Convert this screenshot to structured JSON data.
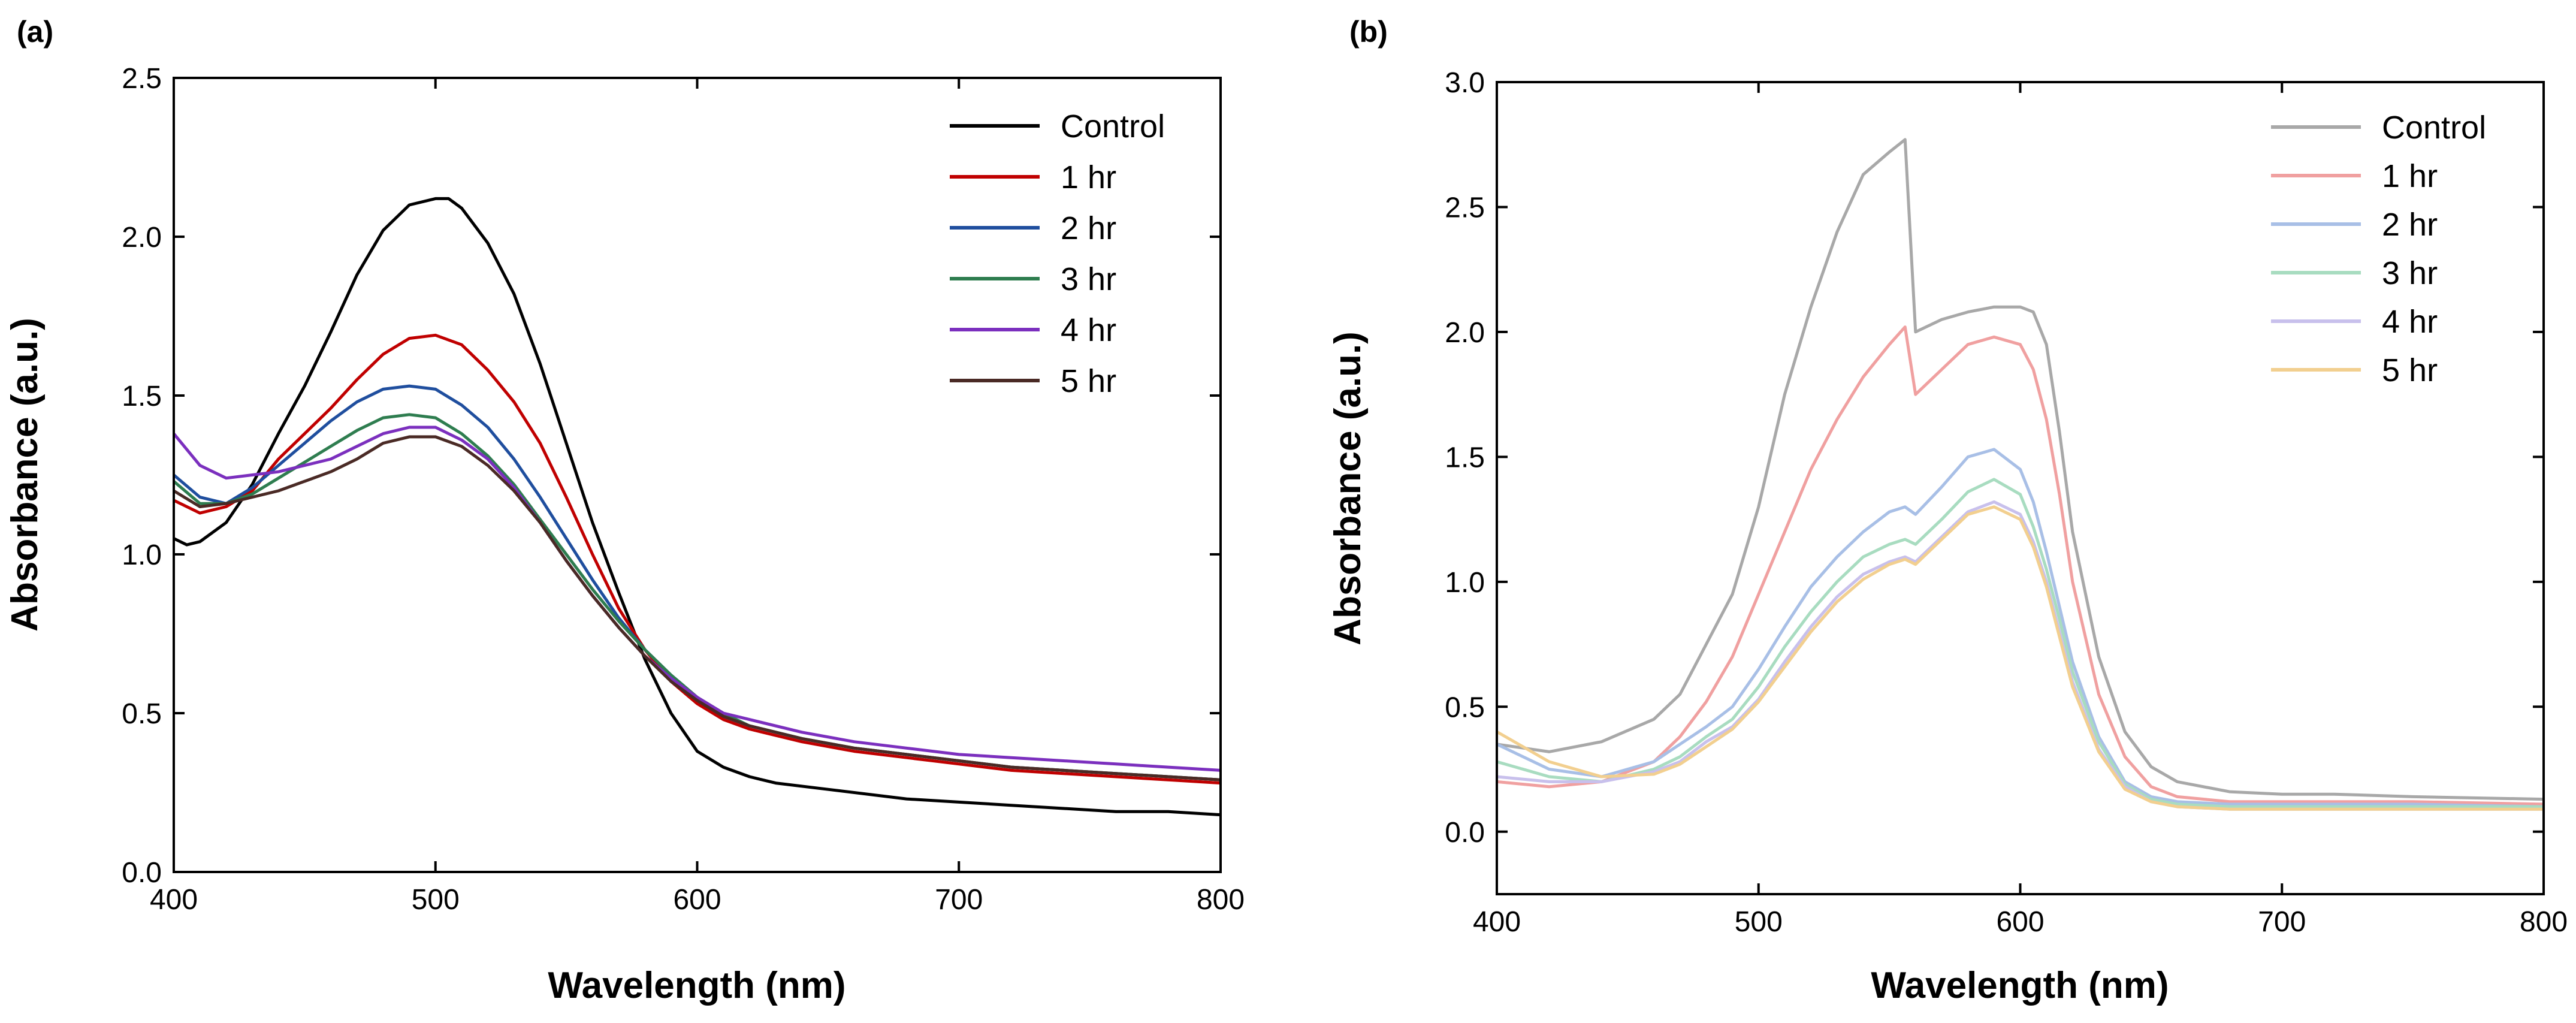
{
  "chart_data": [
    {
      "type": "line",
      "panel_label": "(a)",
      "xlabel": "Wavelength (nm)",
      "ylabel": "Absorbance (a.u.)",
      "xlim": [
        400,
        800
      ],
      "ylim": [
        0.0,
        2.5
      ],
      "xticks": [
        400,
        500,
        600,
        700,
        800
      ],
      "yticks": [
        0.0,
        0.5,
        1.0,
        1.5,
        2.0,
        2.5
      ],
      "legend_position": "top-right",
      "series": [
        {
          "name": "Control",
          "color": "#000000",
          "x": [
            400,
            405,
            410,
            420,
            430,
            440,
            450,
            460,
            470,
            480,
            490,
            500,
            505,
            510,
            520,
            530,
            540,
            550,
            560,
            570,
            580,
            590,
            600,
            610,
            620,
            630,
            650,
            680,
            700,
            720,
            740,
            760,
            780,
            800
          ],
          "values": [
            1.05,
            1.03,
            1.04,
            1.1,
            1.22,
            1.38,
            1.53,
            1.7,
            1.88,
            2.02,
            2.1,
            2.12,
            2.12,
            2.09,
            1.98,
            1.82,
            1.6,
            1.35,
            1.1,
            0.88,
            0.67,
            0.5,
            0.38,
            0.33,
            0.3,
            0.28,
            0.26,
            0.23,
            0.22,
            0.21,
            0.2,
            0.19,
            0.19,
            0.18
          ]
        },
        {
          "name": "1 hr",
          "color": "#c00000",
          "x": [
            400,
            410,
            420,
            430,
            440,
            450,
            460,
            470,
            480,
            490,
            500,
            510,
            520,
            530,
            540,
            550,
            560,
            570,
            580,
            590,
            600,
            610,
            620,
            640,
            660,
            680,
            700,
            720,
            740,
            760,
            780,
            800
          ],
          "values": [
            1.17,
            1.13,
            1.15,
            1.2,
            1.3,
            1.38,
            1.46,
            1.55,
            1.63,
            1.68,
            1.69,
            1.66,
            1.58,
            1.48,
            1.35,
            1.18,
            1.0,
            0.83,
            0.7,
            0.6,
            0.53,
            0.48,
            0.45,
            0.41,
            0.38,
            0.36,
            0.34,
            0.32,
            0.31,
            0.3,
            0.29,
            0.28
          ]
        },
        {
          "name": "2 hr",
          "color": "#1f4e9e",
          "x": [
            400,
            410,
            420,
            430,
            440,
            450,
            460,
            470,
            480,
            490,
            500,
            510,
            520,
            530,
            540,
            550,
            560,
            570,
            580,
            590,
            600,
            610,
            620,
            640,
            660,
            680,
            700,
            720,
            740,
            760,
            780,
            800
          ],
          "values": [
            1.25,
            1.18,
            1.16,
            1.21,
            1.28,
            1.35,
            1.42,
            1.48,
            1.52,
            1.53,
            1.52,
            1.47,
            1.4,
            1.3,
            1.18,
            1.05,
            0.92,
            0.8,
            0.7,
            0.62,
            0.55,
            0.49,
            0.46,
            0.42,
            0.39,
            0.37,
            0.35,
            0.33,
            0.32,
            0.31,
            0.3,
            0.29
          ]
        },
        {
          "name": "3 hr",
          "color": "#2e7d4f",
          "x": [
            400,
            410,
            420,
            430,
            440,
            450,
            460,
            470,
            480,
            490,
            500,
            510,
            520,
            530,
            540,
            550,
            560,
            570,
            580,
            590,
            600,
            610,
            620,
            640,
            660,
            680,
            700,
            720,
            740,
            760,
            780,
            800
          ],
          "values": [
            1.23,
            1.16,
            1.16,
            1.19,
            1.24,
            1.29,
            1.34,
            1.39,
            1.43,
            1.44,
            1.43,
            1.38,
            1.31,
            1.22,
            1.11,
            1.0,
            0.89,
            0.79,
            0.7,
            0.62,
            0.55,
            0.5,
            0.46,
            0.42,
            0.39,
            0.37,
            0.35,
            0.33,
            0.32,
            0.31,
            0.3,
            0.29
          ]
        },
        {
          "name": "4 hr",
          "color": "#7b2fbe",
          "x": [
            400,
            410,
            420,
            430,
            440,
            450,
            460,
            470,
            480,
            490,
            500,
            510,
            520,
            530,
            540,
            550,
            560,
            570,
            580,
            590,
            600,
            610,
            620,
            640,
            660,
            680,
            700,
            720,
            740,
            760,
            780,
            800
          ],
          "values": [
            1.38,
            1.28,
            1.24,
            1.25,
            1.26,
            1.28,
            1.3,
            1.34,
            1.38,
            1.4,
            1.4,
            1.36,
            1.3,
            1.21,
            1.1,
            0.98,
            0.87,
            0.77,
            0.68,
            0.61,
            0.55,
            0.5,
            0.48,
            0.44,
            0.41,
            0.39,
            0.37,
            0.36,
            0.35,
            0.34,
            0.33,
            0.32
          ]
        },
        {
          "name": "5 hr",
          "color": "#4a2a25",
          "x": [
            400,
            410,
            420,
            430,
            440,
            450,
            460,
            470,
            480,
            490,
            500,
            510,
            520,
            530,
            540,
            550,
            560,
            570,
            580,
            590,
            600,
            610,
            620,
            640,
            660,
            680,
            700,
            720,
            740,
            760,
            780,
            800
          ],
          "values": [
            1.2,
            1.15,
            1.16,
            1.18,
            1.2,
            1.23,
            1.26,
            1.3,
            1.35,
            1.37,
            1.37,
            1.34,
            1.28,
            1.2,
            1.1,
            0.98,
            0.87,
            0.77,
            0.68,
            0.6,
            0.54,
            0.49,
            0.46,
            0.42,
            0.39,
            0.37,
            0.35,
            0.33,
            0.32,
            0.31,
            0.3,
            0.29
          ]
        }
      ]
    },
    {
      "type": "line",
      "panel_label": "(b)",
      "xlabel": "Wavelength (nm)",
      "ylabel": "Absorbance (a.u.)",
      "xlim": [
        400,
        800
      ],
      "ylim": [
        -0.25,
        3.0
      ],
      "xticks": [
        400,
        500,
        600,
        700,
        800
      ],
      "yticks": [
        0.0,
        0.5,
        1.0,
        1.5,
        2.0,
        2.5,
        3.0
      ],
      "legend_position": "top-right",
      "series": [
        {
          "name": "Control",
          "color": "#a8a8a8",
          "x": [
            400,
            420,
            440,
            460,
            470,
            480,
            490,
            500,
            510,
            520,
            530,
            540,
            550,
            556,
            560,
            570,
            580,
            590,
            600,
            605,
            610,
            615,
            620,
            630,
            640,
            650,
            660,
            680,
            700,
            720,
            750,
            800
          ],
          "values": [
            0.35,
            0.32,
            0.36,
            0.45,
            0.55,
            0.75,
            0.95,
            1.3,
            1.75,
            2.1,
            2.4,
            2.63,
            2.72,
            2.77,
            2.0,
            2.05,
            2.08,
            2.1,
            2.1,
            2.08,
            1.95,
            1.6,
            1.2,
            0.7,
            0.4,
            0.26,
            0.2,
            0.16,
            0.15,
            0.15,
            0.14,
            0.13
          ]
        },
        {
          "name": "1 hr",
          "color": "#f0a0a0",
          "x": [
            400,
            420,
            440,
            460,
            470,
            480,
            490,
            500,
            510,
            520,
            530,
            540,
            550,
            556,
            560,
            570,
            580,
            590,
            600,
            605,
            610,
            615,
            620,
            630,
            640,
            650,
            660,
            680,
            700,
            720,
            750,
            800
          ],
          "values": [
            0.2,
            0.18,
            0.2,
            0.28,
            0.38,
            0.52,
            0.7,
            0.95,
            1.2,
            1.45,
            1.65,
            1.82,
            1.95,
            2.02,
            1.75,
            1.85,
            1.95,
            1.98,
            1.95,
            1.85,
            1.65,
            1.35,
            1.0,
            0.55,
            0.3,
            0.18,
            0.14,
            0.12,
            0.12,
            0.12,
            0.12,
            0.11
          ]
        },
        {
          "name": "2 hr",
          "color": "#a8bfe6",
          "x": [
            400,
            420,
            440,
            460,
            470,
            480,
            490,
            500,
            510,
            520,
            530,
            540,
            550,
            556,
            560,
            570,
            580,
            590,
            600,
            605,
            610,
            615,
            620,
            630,
            640,
            650,
            660,
            680,
            700,
            720,
            750,
            800
          ],
          "values": [
            0.35,
            0.25,
            0.22,
            0.28,
            0.35,
            0.42,
            0.5,
            0.65,
            0.82,
            0.98,
            1.1,
            1.2,
            1.28,
            1.3,
            1.27,
            1.38,
            1.5,
            1.53,
            1.45,
            1.32,
            1.12,
            0.9,
            0.68,
            0.38,
            0.2,
            0.14,
            0.12,
            0.11,
            0.11,
            0.11,
            0.11,
            0.1
          ]
        },
        {
          "name": "3 hr",
          "color": "#a8dcc0",
          "x": [
            400,
            420,
            440,
            460,
            470,
            480,
            490,
            500,
            510,
            520,
            530,
            540,
            550,
            556,
            560,
            570,
            580,
            590,
            600,
            605,
            610,
            615,
            620,
            630,
            640,
            650,
            660,
            680,
            700,
            720,
            750,
            800
          ],
          "values": [
            0.28,
            0.22,
            0.2,
            0.25,
            0.3,
            0.38,
            0.45,
            0.58,
            0.74,
            0.88,
            1.0,
            1.1,
            1.15,
            1.17,
            1.15,
            1.25,
            1.36,
            1.41,
            1.35,
            1.22,
            1.05,
            0.85,
            0.64,
            0.36,
            0.19,
            0.13,
            0.11,
            0.1,
            0.1,
            0.1,
            0.1,
            0.1
          ]
        },
        {
          "name": "4 hr",
          "color": "#c8c0ec",
          "x": [
            400,
            420,
            440,
            460,
            470,
            480,
            490,
            500,
            510,
            520,
            530,
            540,
            550,
            556,
            560,
            570,
            580,
            590,
            600,
            605,
            610,
            615,
            620,
            630,
            640,
            650,
            660,
            680,
            700,
            720,
            750,
            800
          ],
          "values": [
            0.22,
            0.2,
            0.2,
            0.24,
            0.28,
            0.36,
            0.42,
            0.53,
            0.68,
            0.82,
            0.94,
            1.03,
            1.08,
            1.1,
            1.08,
            1.18,
            1.28,
            1.32,
            1.27,
            1.16,
            1.0,
            0.8,
            0.6,
            0.33,
            0.18,
            0.12,
            0.1,
            0.09,
            0.09,
            0.09,
            0.09,
            0.09
          ]
        },
        {
          "name": "5 hr",
          "color": "#f2cf8f",
          "x": [
            400,
            420,
            440,
            460,
            470,
            480,
            490,
            500,
            510,
            520,
            530,
            540,
            550,
            556,
            560,
            570,
            580,
            590,
            600,
            605,
            610,
            615,
            620,
            630,
            640,
            650,
            660,
            680,
            700,
            720,
            750,
            800
          ],
          "values": [
            0.4,
            0.28,
            0.22,
            0.23,
            0.27,
            0.34,
            0.41,
            0.52,
            0.66,
            0.8,
            0.92,
            1.01,
            1.07,
            1.09,
            1.07,
            1.17,
            1.27,
            1.3,
            1.25,
            1.14,
            0.98,
            0.78,
            0.58,
            0.32,
            0.17,
            0.12,
            0.1,
            0.09,
            0.09,
            0.09,
            0.09,
            0.09
          ]
        }
      ]
    }
  ]
}
